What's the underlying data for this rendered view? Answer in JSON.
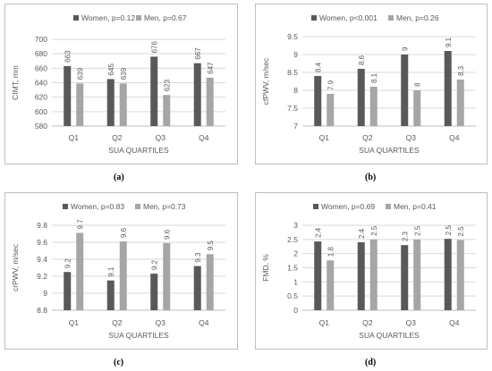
{
  "colors": {
    "women": "#595959",
    "men": "#a6a6a6",
    "grid": "#d9d9d9",
    "text": "#595959"
  },
  "chart_data": [
    {
      "id": "a",
      "type": "bar",
      "panel_label": "(a)",
      "ylabel": "CIMT, mm",
      "xlabel": "SUA QUARTILES",
      "categories": [
        "Q1",
        "Q2",
        "Q3",
        "Q4"
      ],
      "ylim": [
        580,
        700
      ],
      "yticks": [
        580,
        600,
        620,
        640,
        660,
        680,
        700
      ],
      "grid": true,
      "legend": "top",
      "series": [
        {
          "name": "Women, p=0.12",
          "values": [
            663,
            645,
            676,
            667
          ],
          "labels": [
            "663",
            "645",
            "676",
            "667"
          ]
        },
        {
          "name": "Men, p=0.67",
          "values": [
            639,
            639,
            623,
            647
          ],
          "labels": [
            "639",
            "639",
            "623",
            "647"
          ]
        }
      ]
    },
    {
      "id": "b",
      "type": "bar",
      "panel_label": "(b)",
      "ylabel": "cfPWV, m/sec",
      "xlabel": "SUA QUARTILES",
      "categories": [
        "Q1",
        "Q2",
        "Q3",
        "Q4"
      ],
      "ylim": [
        7,
        9.5
      ],
      "yticks": [
        7,
        7.5,
        8,
        8.5,
        9,
        9.5
      ],
      "grid": true,
      "legend": "top",
      "series": [
        {
          "name": "Women, p<0.001",
          "values": [
            8.4,
            8.6,
            9,
            9.1
          ],
          "labels": [
            "8.4",
            "8.6",
            "9",
            "9.1"
          ]
        },
        {
          "name": "Men, p=0.26",
          "values": [
            7.9,
            8.1,
            8,
            8.3
          ],
          "labels": [
            "7.9",
            "8.1",
            "8",
            "8.3"
          ]
        }
      ]
    },
    {
      "id": "c",
      "type": "bar",
      "panel_label": "(c)",
      "ylabel": "crPWV, m/sec",
      "xlabel": "SUA QUARTILES",
      "categories": [
        "Q1",
        "Q2",
        "Q3",
        "Q4"
      ],
      "ylim": [
        8.8,
        9.8
      ],
      "yticks": [
        8.8,
        9,
        9.2,
        9.4,
        9.6,
        9.8
      ],
      "grid": true,
      "legend": "top",
      "series": [
        {
          "name": "Women, p=0.83",
          "values": [
            9.25,
            9.15,
            9.23,
            9.32
          ],
          "labels": [
            "9.2",
            "9.1",
            "9.2",
            "9.3"
          ]
        },
        {
          "name": "Men, p=0.73",
          "values": [
            9.71,
            9.61,
            9.59,
            9.46
          ],
          "labels": [
            "9.7",
            "9.6",
            "9.6",
            "9.5"
          ]
        }
      ]
    },
    {
      "id": "d",
      "type": "bar",
      "panel_label": "(d)",
      "ylabel": "FMD, %",
      "xlabel": "SUA QUARTILES",
      "categories": [
        "Q1",
        "Q2",
        "Q3",
        "Q4"
      ],
      "ylim": [
        0,
        3
      ],
      "yticks": [
        0,
        0.5,
        1,
        1.5,
        2,
        2.5,
        3
      ],
      "grid": true,
      "legend": "top",
      "series": [
        {
          "name": "Women, p=0.69",
          "values": [
            2.43,
            2.4,
            2.3,
            2.52
          ],
          "labels": [
            "2.4",
            "2.4",
            "2.3",
            "2.5"
          ]
        },
        {
          "name": "Men, p=0.41",
          "values": [
            1.76,
            2.5,
            2.5,
            2.48
          ],
          "labels": [
            "1.8",
            "2.5",
            "2.5",
            "2.5"
          ]
        }
      ]
    }
  ]
}
